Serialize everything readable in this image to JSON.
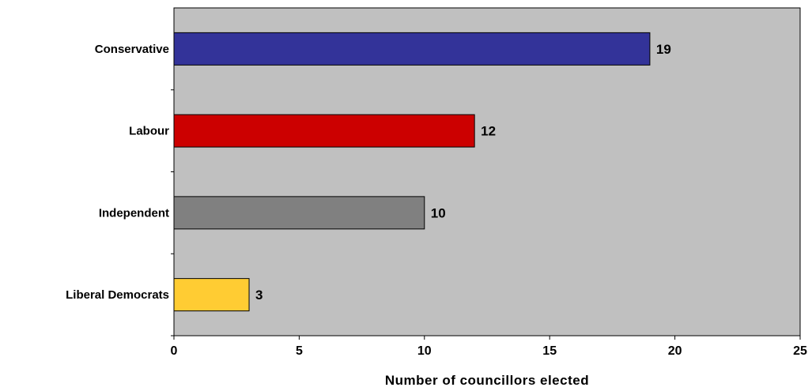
{
  "chart_data": {
    "type": "bar",
    "orientation": "horizontal",
    "categories": [
      "Conservative",
      "Labour",
      "Independent",
      "Liberal Democrats"
    ],
    "values": [
      19,
      12,
      10,
      3
    ],
    "bar_colors": [
      "#333399",
      "#cc0000",
      "#808080",
      "#ffcc33"
    ],
    "plot_background": "#c0c0c0",
    "title": "",
    "xlabel": "Number of councillors elected",
    "ylabel": "",
    "xlim": [
      0,
      25
    ],
    "xticks": [
      0,
      5,
      10,
      15,
      20,
      25
    ],
    "grid": false,
    "legend": "none",
    "data_labels": [
      "19",
      "12",
      "10",
      "3"
    ]
  }
}
